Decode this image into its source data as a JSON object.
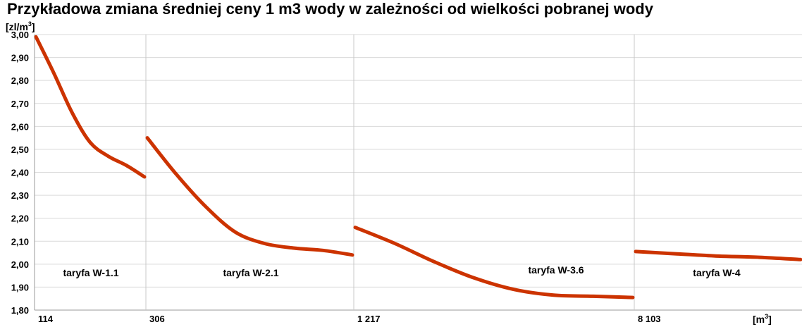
{
  "chart_data": {
    "type": "line",
    "title": "Przykładowa zmiana średniej ceny 1 m3 wody w zależności od wielkości pobranej wody",
    "ylabel": "zl/m",
    "ylabel_sup": "3",
    "xlabel": "m",
    "xlabel_sup": "3",
    "ylim": [
      1.8,
      3.0
    ],
    "y_ticks": [
      "3,00",
      "2,90",
      "2,80",
      "2,70",
      "2,60",
      "2,50",
      "2,40",
      "2,30",
      "2,20",
      "2,10",
      "2,00",
      "1,90",
      "1,80"
    ],
    "y_tick_values": [
      3.0,
      2.9,
      2.8,
      2.7,
      2.6,
      2.5,
      2.4,
      2.3,
      2.2,
      2.1,
      2.0,
      1.9,
      1.8
    ],
    "x_ticks": [
      "114",
      "306",
      "1 217",
      "8 103"
    ],
    "color": "#cc3300",
    "grid": true,
    "segments": [
      {
        "name": "taryfa W-1.1",
        "x_start": "114",
        "x_end": "306",
        "values": [
          2.99,
          2.83,
          2.66,
          2.53,
          2.47,
          2.43,
          2.38
        ]
      },
      {
        "name": "taryfa W-2.1",
        "x_start": "306",
        "x_end": "1 217",
        "values": [
          2.55,
          2.39,
          2.25,
          2.14,
          2.09,
          2.07,
          2.06,
          2.04
        ]
      },
      {
        "name": "taryfa W-3.6",
        "x_start": "1 217",
        "x_end": "8 103",
        "values": [
          2.16,
          2.09,
          2.01,
          1.94,
          1.89,
          1.865,
          1.86,
          1.855
        ]
      },
      {
        "name": "taryfa W-4",
        "x_start": "8 103",
        "x_end": "",
        "values": [
          2.055,
          2.045,
          2.035,
          2.03,
          2.02
        ]
      }
    ]
  }
}
